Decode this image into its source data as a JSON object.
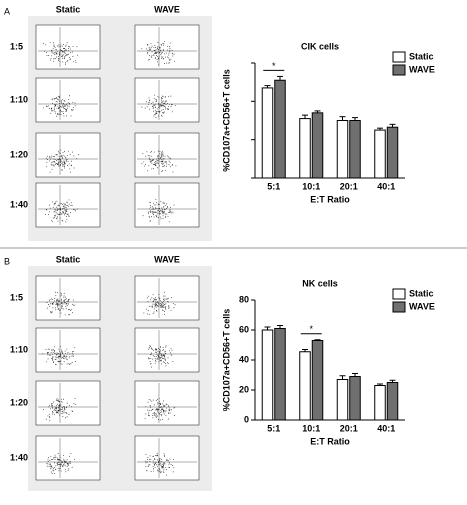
{
  "panels": [
    {
      "label": "A",
      "columns": [
        "Static",
        "WAVE"
      ],
      "rows": [
        "1:5",
        "1:10",
        "1:20",
        "1:40"
      ]
    },
    {
      "label": "B",
      "columns": [
        "Static",
        "WAVE"
      ],
      "rows": [
        "1:5",
        "1:10",
        "1:20",
        "1:40"
      ]
    }
  ],
  "chart_data": [
    {
      "type": "bar",
      "title": "CIK cells",
      "y_label": "%CD107a+CD56+T cells",
      "x_label": "E:T Ratio",
      "categories": [
        "5:1",
        "10:1",
        "20:1",
        "40:1"
      ],
      "series": [
        {
          "name": "Static",
          "color": "#ffffff",
          "values": [
            47,
            31,
            30,
            25
          ],
          "errors": [
            1.2,
            1.8,
            2,
            1
          ]
        },
        {
          "name": "WAVE",
          "color": "#707070",
          "values": [
            51,
            34,
            30,
            26.5
          ],
          "errors": [
            2,
            1,
            1.5,
            1.5
          ]
        }
      ],
      "ylim": [
        0,
        60
      ],
      "yticks": [
        0,
        20,
        40,
        60
      ],
      "tick_labels": false,
      "legend": "top-right",
      "annotations": [
        {
          "text": "*",
          "category": "5:1"
        }
      ]
    },
    {
      "type": "bar",
      "title": "NK cells",
      "y_label": "%CD107a+CD56+T cells",
      "x_label": "E:T Ratio",
      "categories": [
        "5:1",
        "10:1",
        "20:1",
        "40:1"
      ],
      "series": [
        {
          "name": "Static",
          "color": "#ffffff",
          "values": [
            60,
            45.5,
            27,
            23
          ],
          "errors": [
            2,
            1.5,
            2.5,
            1
          ]
        },
        {
          "name": "WAVE",
          "color": "#707070",
          "values": [
            61,
            53,
            29,
            25
          ],
          "errors": [
            2,
            0.5,
            2,
            1.5
          ]
        }
      ],
      "ylim": [
        0,
        80
      ],
      "yticks": [
        0,
        20,
        40,
        60,
        80
      ],
      "tick_labels": true,
      "legend": "top-right",
      "annotations": [
        {
          "text": "*",
          "category": "10:1"
        }
      ]
    }
  ]
}
